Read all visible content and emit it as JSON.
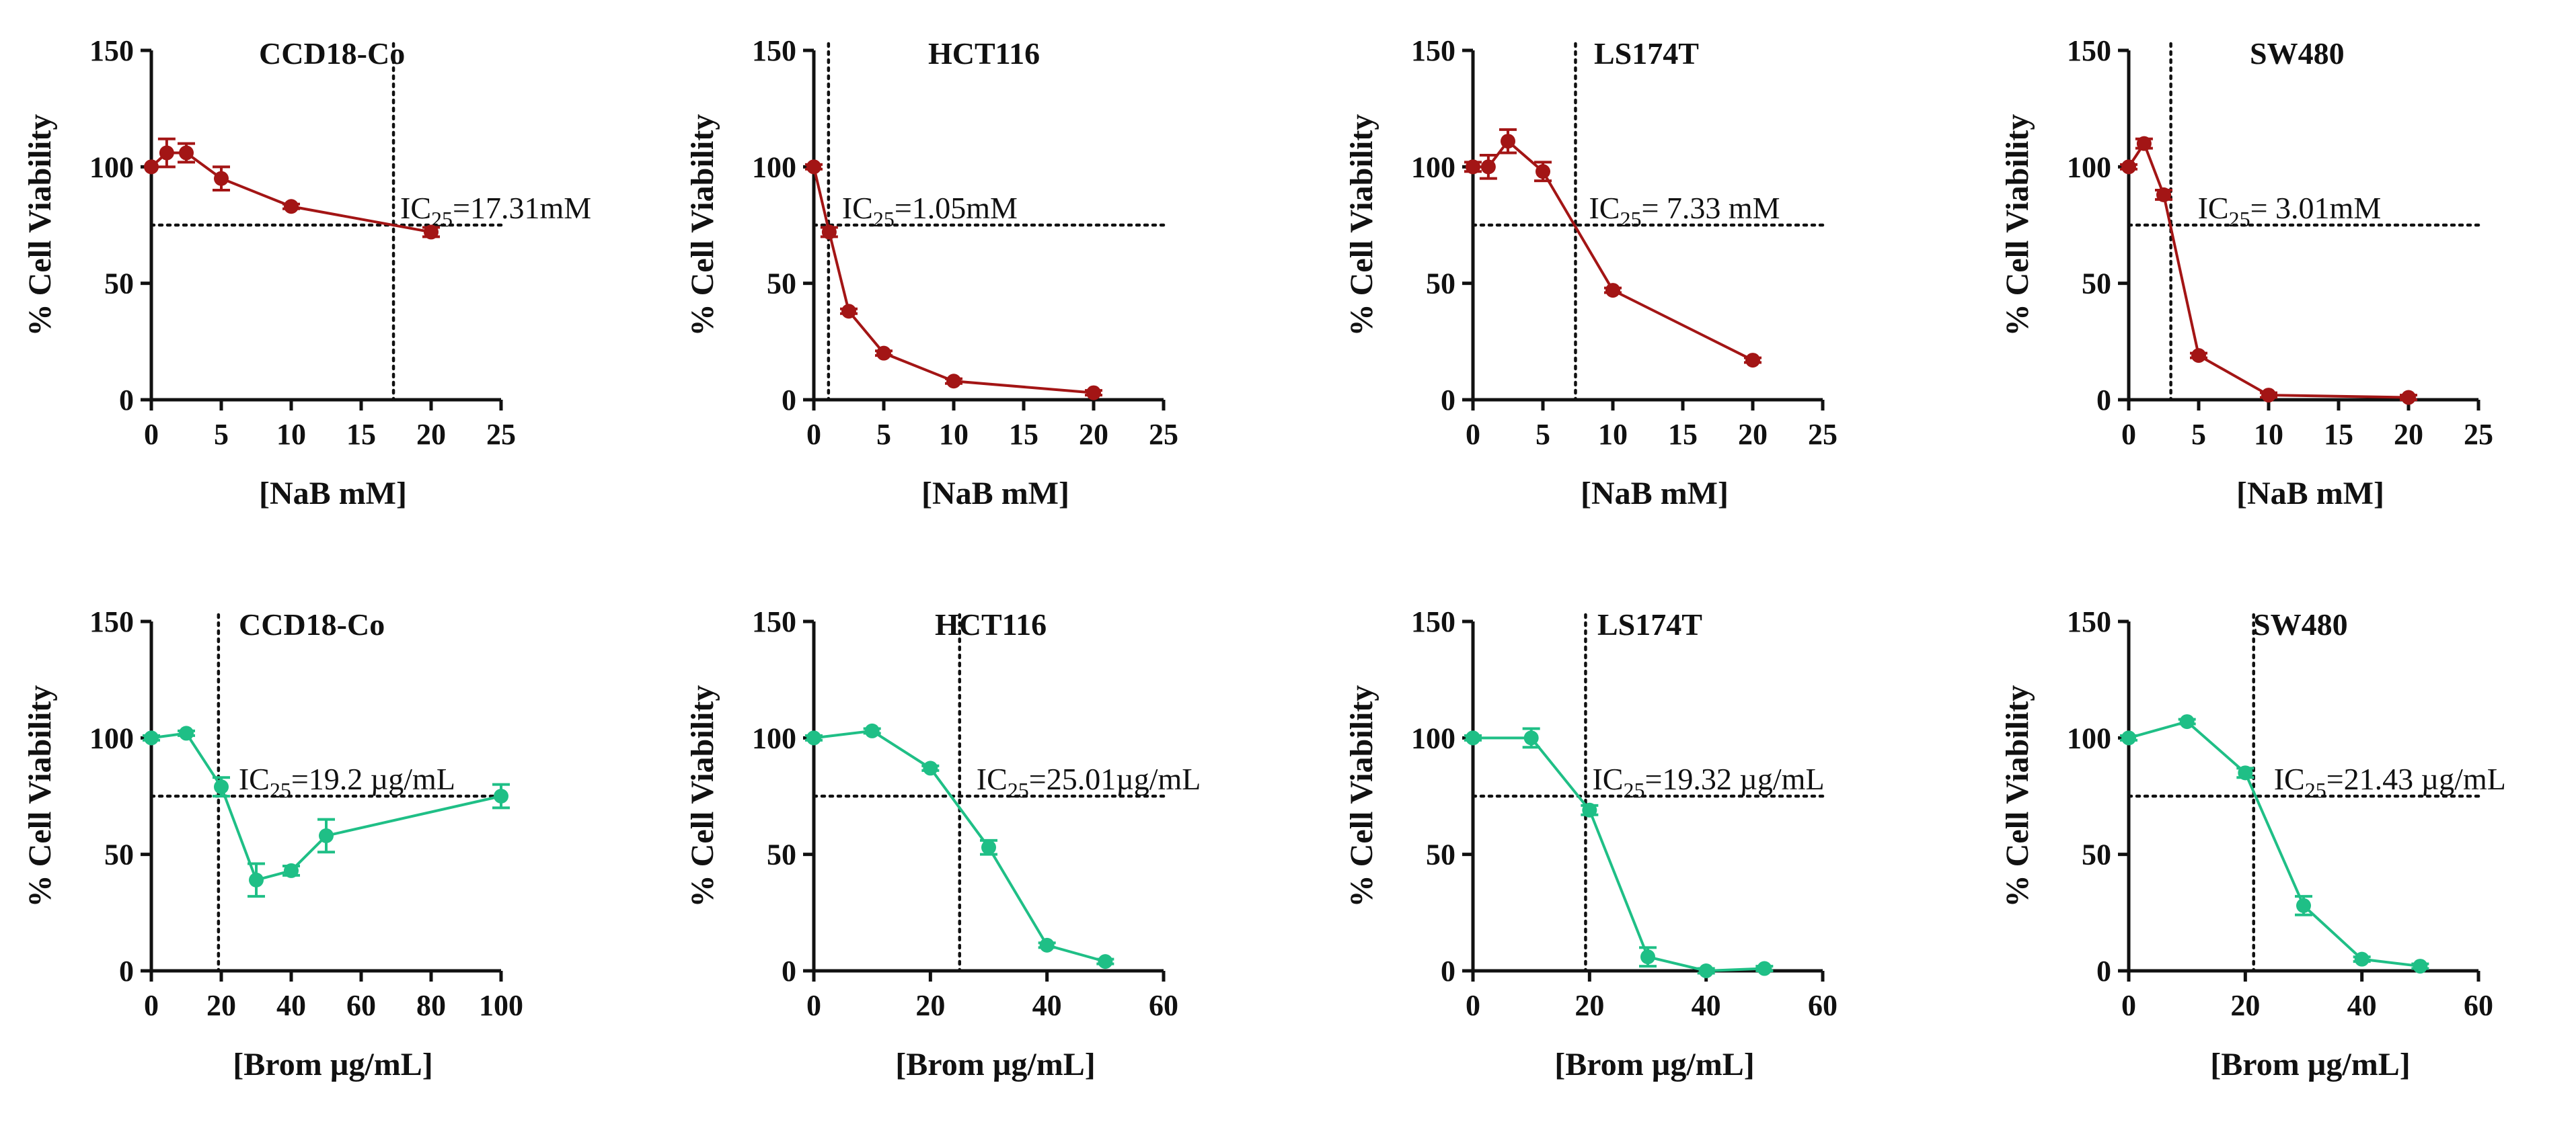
{
  "colors": {
    "nab": "#a31515",
    "brom": "#1fbf86",
    "axis": "#111111"
  },
  "chart_data": [
    {
      "type": "line",
      "title": "CCD18-Co",
      "xlabel": "[NaB mM]",
      "ylabel": "% Cell Viability",
      "xlim": [
        0,
        25
      ],
      "ylim": [
        0,
        150
      ],
      "xticks": [
        "0",
        "5",
        "10",
        "15",
        "20",
        "25"
      ],
      "yticks": [
        "0",
        "50",
        "100",
        "150"
      ],
      "x": [
        0,
        1.1,
        2.5,
        5,
        10,
        20
      ],
      "y": [
        100,
        106,
        106,
        95,
        83,
        72
      ],
      "err": [
        0,
        6,
        4,
        5,
        1,
        2
      ],
      "ic_line": {
        "x": 17.31,
        "y": 75
      },
      "ic_label": {
        "base": "IC",
        "sub": "25",
        "text": "=17.31mM"
      }
    },
    {
      "type": "line",
      "title": "HCT116",
      "xlabel": "[NaB mM]",
      "ylabel": "% Cell Viability",
      "xlim": [
        0,
        25
      ],
      "ylim": [
        0,
        150
      ],
      "xticks": [
        "0",
        "5",
        "10",
        "15",
        "20",
        "25"
      ],
      "yticks": [
        "0",
        "50",
        "100",
        "150"
      ],
      "x": [
        0,
        1.1,
        2.5,
        5,
        10,
        20
      ],
      "y": [
        100,
        72,
        38,
        20,
        8,
        3
      ],
      "err": [
        1,
        2,
        1,
        1,
        1,
        1
      ],
      "ic_line": {
        "x": 1.05,
        "y": 75
      },
      "ic_label": {
        "base": "IC",
        "sub": "25",
        "text": "=1.05mM"
      }
    },
    {
      "type": "line",
      "title": "LS174T",
      "xlabel": "[NaB mM]",
      "ylabel": "% Cell Viability",
      "xlim": [
        0,
        25
      ],
      "ylim": [
        0,
        150
      ],
      "xticks": [
        "0",
        "5",
        "10",
        "15",
        "20",
        "25"
      ],
      "yticks": [
        "0",
        "50",
        "100",
        "150"
      ],
      "x": [
        0,
        1.1,
        2.5,
        5,
        10,
        20
      ],
      "y": [
        100,
        100,
        111,
        98,
        47,
        17
      ],
      "err": [
        2,
        5,
        5,
        4,
        1,
        1
      ],
      "ic_line": {
        "x": 7.33,
        "y": 75
      },
      "ic_label": {
        "base": "IC",
        "sub": "25",
        "text": "= 7.33 mM"
      }
    },
    {
      "type": "line",
      "title": "SW480",
      "xlabel": "[NaB mM]",
      "ylabel": "% Cell Viability",
      "xlim": [
        0,
        25
      ],
      "ylim": [
        0,
        150
      ],
      "xticks": [
        "0",
        "5",
        "10",
        "15",
        "20",
        "25"
      ],
      "yticks": [
        "0",
        "50",
        "100",
        "150"
      ],
      "x": [
        0,
        1.1,
        2.5,
        5,
        10,
        20
      ],
      "y": [
        100,
        110,
        88,
        19,
        2,
        1
      ],
      "err": [
        1,
        2,
        2,
        1,
        1,
        1
      ],
      "ic_line": {
        "x": 3.01,
        "y": 75
      },
      "ic_label": {
        "base": "IC",
        "sub": "25",
        "text": "= 3.01mM"
      }
    },
    {
      "type": "line",
      "title": "CCD18-Co",
      "xlabel": "[Brom µg/mL]",
      "ylabel": "% Cell Viability",
      "xlim": [
        0,
        100
      ],
      "ylim": [
        0,
        150
      ],
      "xticks": [
        "0",
        "20",
        "40",
        "60",
        "80",
        "100"
      ],
      "yticks": [
        "0",
        "50",
        "100",
        "150"
      ],
      "x": [
        0,
        10,
        20,
        30,
        40,
        50,
        100
      ],
      "y": [
        100,
        102,
        79,
        39,
        43,
        58,
        75
      ],
      "err": [
        1,
        1,
        4,
        7,
        2,
        7,
        5
      ],
      "ic_line": {
        "x": 19.2,
        "y": 75
      },
      "ic_label": {
        "base": "IC",
        "sub": "25",
        "text": "=19.2 µg/mL"
      }
    },
    {
      "type": "line",
      "title": "HCT116",
      "xlabel": "[Brom µg/mL]",
      "ylabel": "% Cell Viability",
      "xlim": [
        0,
        60
      ],
      "ylim": [
        0,
        150
      ],
      "xticks": [
        "0",
        "20",
        "40",
        "60"
      ],
      "yticks": [
        "0",
        "50",
        "100",
        "150"
      ],
      "x": [
        0,
        10,
        20,
        30,
        40,
        50
      ],
      "y": [
        100,
        103,
        87,
        53,
        11,
        4
      ],
      "err": [
        1,
        1,
        1,
        3,
        1,
        1
      ],
      "ic_line": {
        "x": 25.01,
        "y": 75
      },
      "ic_label": {
        "base": "IC",
        "sub": "25",
        "text": "=25.01µg/mL"
      }
    },
    {
      "type": "line",
      "title": "LS174T",
      "xlabel": "[Brom µg/mL]",
      "ylabel": "% Cell Viability",
      "xlim": [
        0,
        60
      ],
      "ylim": [
        0,
        150
      ],
      "xticks": [
        "0",
        "20",
        "40",
        "60"
      ],
      "yticks": [
        "0",
        "50",
        "100",
        "150"
      ],
      "x": [
        0,
        10,
        20,
        30,
        40,
        50
      ],
      "y": [
        100,
        100,
        69,
        6,
        0,
        1
      ],
      "err": [
        1,
        4,
        2,
        4,
        1,
        1
      ],
      "ic_line": {
        "x": 19.32,
        "y": 75
      },
      "ic_label": {
        "base": "IC",
        "sub": "25",
        "text": "=19.32 µg/mL"
      }
    },
    {
      "type": "line",
      "title": "SW480",
      "xlabel": "[Brom µg/mL]",
      "ylabel": "% Cell Viability",
      "xlim": [
        0,
        60
      ],
      "ylim": [
        0,
        150
      ],
      "xticks": [
        "0",
        "20",
        "40",
        "60"
      ],
      "yticks": [
        "0",
        "50",
        "100",
        "150"
      ],
      "x": [
        0,
        10,
        20,
        30,
        40,
        50
      ],
      "y": [
        100,
        107,
        85,
        28,
        5,
        2
      ],
      "err": [
        1,
        1,
        2,
        4,
        1,
        1
      ],
      "ic_line": {
        "x": 21.43,
        "y": 75
      },
      "ic_label": {
        "base": "IC",
        "sub": "25",
        "text": "=21.43 µg/mL"
      }
    }
  ]
}
